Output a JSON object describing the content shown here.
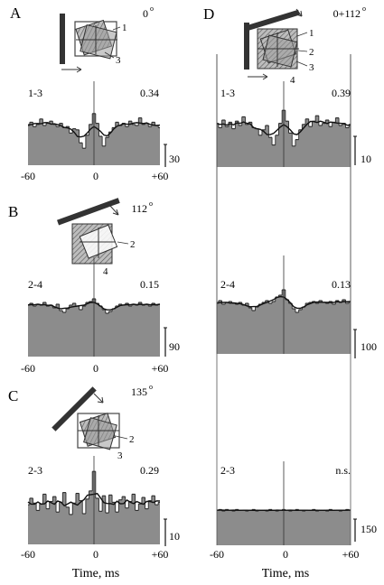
{
  "figure": {
    "xlabel": "Time, ms",
    "x_ticks": [
      "-60",
      "0",
      "+60"
    ]
  },
  "panels": [
    {
      "id": "A",
      "angle": "0",
      "pair": "1-3",
      "coef": "0.34",
      "scale": "30",
      "labels": [
        "1",
        "3"
      ]
    },
    {
      "id": "B",
      "angle": "112",
      "pair": "2-4",
      "coef": "0.15",
      "scale": "90",
      "labels": [
        "2",
        "4"
      ]
    },
    {
      "id": "C",
      "angle": "135",
      "pair": "2-3",
      "coef": "0.29",
      "scale": "10",
      "labels": [
        "2",
        "3"
      ]
    },
    {
      "id": "D",
      "angle": "0+112",
      "labels": [
        "1",
        "2",
        "3",
        "4"
      ],
      "rows": [
        {
          "pair": "1-3",
          "coef": "0.39",
          "scale": "10"
        },
        {
          "pair": "2-4",
          "coef": "0.13",
          "scale": "100"
        },
        {
          "pair": "2-3",
          "coef": "n.s.",
          "scale": "150"
        }
      ]
    }
  ],
  "chart_data": [
    {
      "type": "bar",
      "panel": "A",
      "pair": "1-3",
      "xlim": [
        -60,
        60
      ],
      "x": [
        -60,
        -57,
        -54,
        -51,
        -48,
        -45,
        -42,
        -39,
        -36,
        -33,
        -30,
        -27,
        -24,
        -21,
        -18,
        -15,
        -12,
        -9,
        -6,
        -3,
        0,
        3,
        6,
        9,
        12,
        15,
        18,
        21,
        24,
        27,
        30,
        33,
        36,
        39,
        42,
        45,
        48,
        51,
        54,
        57,
        60
      ],
      "values": [
        0.5,
        0.8,
        0.4,
        0.6,
        1.1,
        0.5,
        0.7,
        0.9,
        0.6,
        0.4,
        0.7,
        0.3,
        0.4,
        -0.2,
        0.2,
        0.1,
        -1.1,
        -1.6,
        -0.4,
        0.6,
        1.6,
        0.7,
        -0.5,
        -1.4,
        -0.6,
        -0.1,
        0.3,
        0.8,
        0.5,
        0.7,
        0.4,
        0.9,
        0.6,
        0.5,
        1.2,
        0.6,
        0.7,
        0.4,
        0.8,
        0.5,
        0.3
      ]
    },
    {
      "type": "bar",
      "panel": "B",
      "pair": "2-4",
      "xlim": [
        -60,
        60
      ],
      "x": [
        -60,
        -57,
        -54,
        -51,
        -48,
        -45,
        -42,
        -39,
        -36,
        -33,
        -30,
        -27,
        -24,
        -21,
        -18,
        -15,
        -12,
        -9,
        -6,
        -3,
        0,
        3,
        6,
        9,
        12,
        15,
        18,
        21,
        24,
        27,
        30,
        33,
        36,
        39,
        42,
        45,
        48,
        51,
        54,
        57,
        60
      ],
      "values": [
        0.2,
        0.4,
        0.1,
        0.3,
        0.2,
        0.5,
        0.1,
        0.2,
        -0.1,
        0.3,
        -0.4,
        -0.6,
        -0.2,
        0.2,
        0.4,
        0.1,
        -0.3,
        0.1,
        0.5,
        0.6,
        0.9,
        0.4,
        0.1,
        -0.3,
        -0.7,
        -0.5,
        -0.2,
        0.1,
        0.3,
        0.2,
        0.4,
        0.1,
        0.3,
        0.2,
        0.5,
        0.2,
        0.3,
        0.1,
        0.4,
        0.2,
        0.3
      ]
    },
    {
      "type": "bar",
      "panel": "C",
      "pair": "2-3",
      "xlim": [
        -60,
        60
      ],
      "x": [
        -60,
        -57,
        -54,
        -51,
        -48,
        -45,
        -42,
        -39,
        -36,
        -33,
        -30,
        -27,
        -24,
        -21,
        -18,
        -15,
        -12,
        -9,
        -6,
        -3,
        0,
        3,
        6,
        9,
        12,
        15,
        18,
        21,
        24,
        27,
        30,
        33,
        36,
        39,
        42,
        45,
        48,
        51,
        54,
        57,
        60
      ],
      "values": [
        0.1,
        0.9,
        0.3,
        -0.6,
        0.2,
        1.4,
        -0.4,
        0.5,
        1.1,
        -0.8,
        0.4,
        1.6,
        -0.2,
        -1.1,
        0.3,
        1.5,
        0.6,
        -1.0,
        0.8,
        1.8,
        4.2,
        0.9,
        -0.7,
        1.2,
        -0.9,
        1.3,
        0.4,
        -0.8,
        0.7,
        1.1,
        -0.3,
        0.5,
        1.4,
        -0.6,
        0.2,
        1.0,
        -0.4,
        0.6,
        1.2,
        0.1,
        0.4
      ]
    },
    {
      "type": "bar",
      "panel": "D",
      "pair": "1-3",
      "xlim": [
        -60,
        60
      ],
      "x": [
        -60,
        -57,
        -54,
        -51,
        -48,
        -45,
        -42,
        -39,
        -36,
        -33,
        -30,
        -27,
        -24,
        -21,
        -18,
        -15,
        -12,
        -9,
        -6,
        -3,
        0,
        3,
        6,
        9,
        12,
        15,
        18,
        21,
        24,
        27,
        30,
        33,
        36,
        39,
        42,
        45,
        48,
        51,
        54,
        57,
        60
      ],
      "values": [
        0.7,
        0.3,
        1.0,
        0.4,
        0.8,
        0.2,
        0.9,
        0.5,
        1.3,
        0.6,
        0.8,
        0.3,
        0.2,
        -0.4,
        0.1,
        0.5,
        -0.6,
        -1.3,
        -0.4,
        0.7,
        1.9,
        0.9,
        -0.2,
        -1.4,
        -0.8,
        0.1,
        0.6,
        1.1,
        0.4,
        0.9,
        1.4,
        0.5,
        0.7,
        1.0,
        0.4,
        0.8,
        1.2,
        0.5,
        0.7,
        0.3,
        0.6
      ]
    },
    {
      "type": "bar",
      "panel": "D",
      "pair": "2-4",
      "xlim": [
        -60,
        60
      ],
      "x": [
        -60,
        -57,
        -54,
        -51,
        -48,
        -45,
        -42,
        -39,
        -36,
        -33,
        -30,
        -27,
        -24,
        -21,
        -18,
        -15,
        -12,
        -9,
        -6,
        -3,
        0,
        3,
        6,
        9,
        12,
        15,
        18,
        21,
        24,
        27,
        30,
        33,
        36,
        39,
        42,
        45,
        48,
        51,
        54,
        57,
        60
      ],
      "values": [
        0.2,
        0.5,
        0.1,
        0.3,
        0.4,
        0.2,
        0.1,
        0.3,
        0.0,
        0.2,
        -0.3,
        -0.6,
        -0.2,
        0.1,
        0.3,
        0.5,
        0.2,
        0.4,
        0.9,
        1.1,
        1.7,
        0.6,
        0.2,
        -0.4,
        -0.8,
        -0.5,
        -0.2,
        0.2,
        0.3,
        0.4,
        0.2,
        0.5,
        0.3,
        0.2,
        0.4,
        0.1,
        0.5,
        0.3,
        0.6,
        0.2,
        0.4
      ]
    },
    {
      "type": "bar",
      "panel": "D",
      "pair": "2-3",
      "xlim": [
        -60,
        60
      ],
      "x": [
        -60,
        -57,
        -54,
        -51,
        -48,
        -45,
        -42,
        -39,
        -36,
        -33,
        -30,
        -27,
        -24,
        -21,
        -18,
        -15,
        -12,
        -9,
        -6,
        -3,
        0,
        3,
        6,
        9,
        12,
        15,
        18,
        21,
        24,
        27,
        30,
        33,
        36,
        39,
        42,
        45,
        48,
        51,
        54,
        57,
        60
      ],
      "values": [
        0.1,
        0.2,
        0.0,
        0.2,
        0.1,
        0.0,
        0.2,
        0.1,
        0.1,
        0.0,
        0.1,
        0.2,
        0.0,
        0.1,
        0.1,
        0.0,
        0.2,
        0.1,
        0.0,
        0.1,
        0.2,
        0.1,
        0.0,
        0.1,
        0.2,
        0.1,
        0.0,
        0.1,
        0.1,
        0.2,
        0.0,
        0.1,
        0.1,
        0.0,
        0.2,
        0.1,
        0.1,
        0.0,
        0.1,
        0.2,
        0.1
      ]
    }
  ]
}
